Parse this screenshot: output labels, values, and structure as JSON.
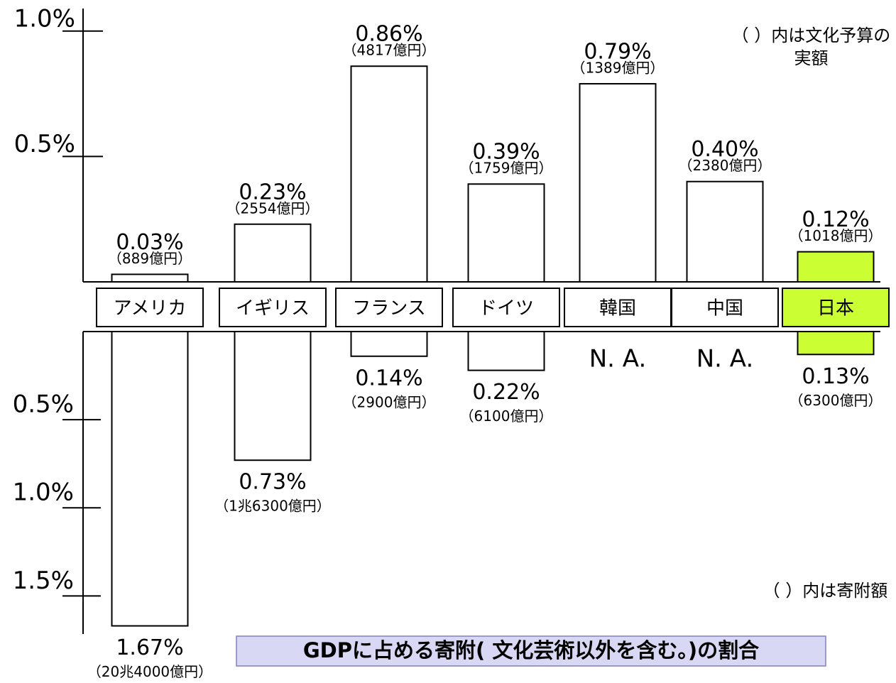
{
  "chart_data": {
    "type": "bar",
    "title": "GDPに占める寄附( 文化芸術以外を含む。)の割合",
    "annotations": [
      "（ ）内は文化予算の実額",
      "（ ）内は寄附額"
    ],
    "categories": [
      "アメリカ",
      "イギリス",
      "フランス",
      "ドイツ",
      "韓国",
      "中国",
      "日本"
    ],
    "category_colors": [
      "#ffffff",
      "#ffffff",
      "#ffffff",
      "#ffffff",
      "#ffffff",
      "#ffffff",
      "#ccff33"
    ],
    "series": [
      {
        "axis": "y",
        "values": [
          0.03,
          0.23,
          0.86,
          0.39,
          0.79,
          0.4,
          0.12
        ],
        "value_labels": [
          "0.03%",
          "0.23%",
          "0.86%",
          "0.39%",
          "0.79%",
          "0.40%",
          "0.12%"
        ],
        "amount_labels": [
          "（889億円）",
          "（2554億円）",
          "（4817億円）",
          "（1759億円）",
          "（1389億円）",
          "（2380億円）",
          "（1018億円）"
        ],
        "colors": [
          "#ffffff",
          "#ffffff",
          "#ffffff",
          "#ffffff",
          "#ffffff",
          "#ffffff",
          "#ccff33"
        ]
      },
      {
        "axis": "y2",
        "values": [
          1.67,
          0.73,
          0.14,
          0.22,
          null,
          null,
          0.13
        ],
        "value_labels": [
          "1.67%",
          "0.73%",
          "0.14%",
          "0.22%",
          "N. A.",
          "N. A.",
          "0.13%"
        ],
        "amount_labels": [
          "（20兆4000億円）",
          "（1兆6300億円）",
          "（2900億円）",
          "（6100億円）",
          null,
          null,
          "（6300億円）"
        ],
        "colors": [
          "#ffffff",
          "#ffffff",
          "#ffffff",
          "#ffffff",
          "#ffffff",
          "#ffffff",
          "#ccff33"
        ]
      }
    ],
    "ylim": [
      0,
      1.09
    ],
    "yticks": [
      {
        "value": 0.5,
        "label": "0.5%"
      },
      {
        "value": 1.0,
        "label": "1.0%"
      }
    ],
    "y2lim": [
      0,
      1.7
    ],
    "y2ticks": [
      {
        "value": 0.5,
        "label": "0.5%"
      },
      {
        "value": 1.0,
        "label": "1.0%"
      },
      {
        "value": 1.5,
        "label": "1.5%"
      }
    ]
  }
}
